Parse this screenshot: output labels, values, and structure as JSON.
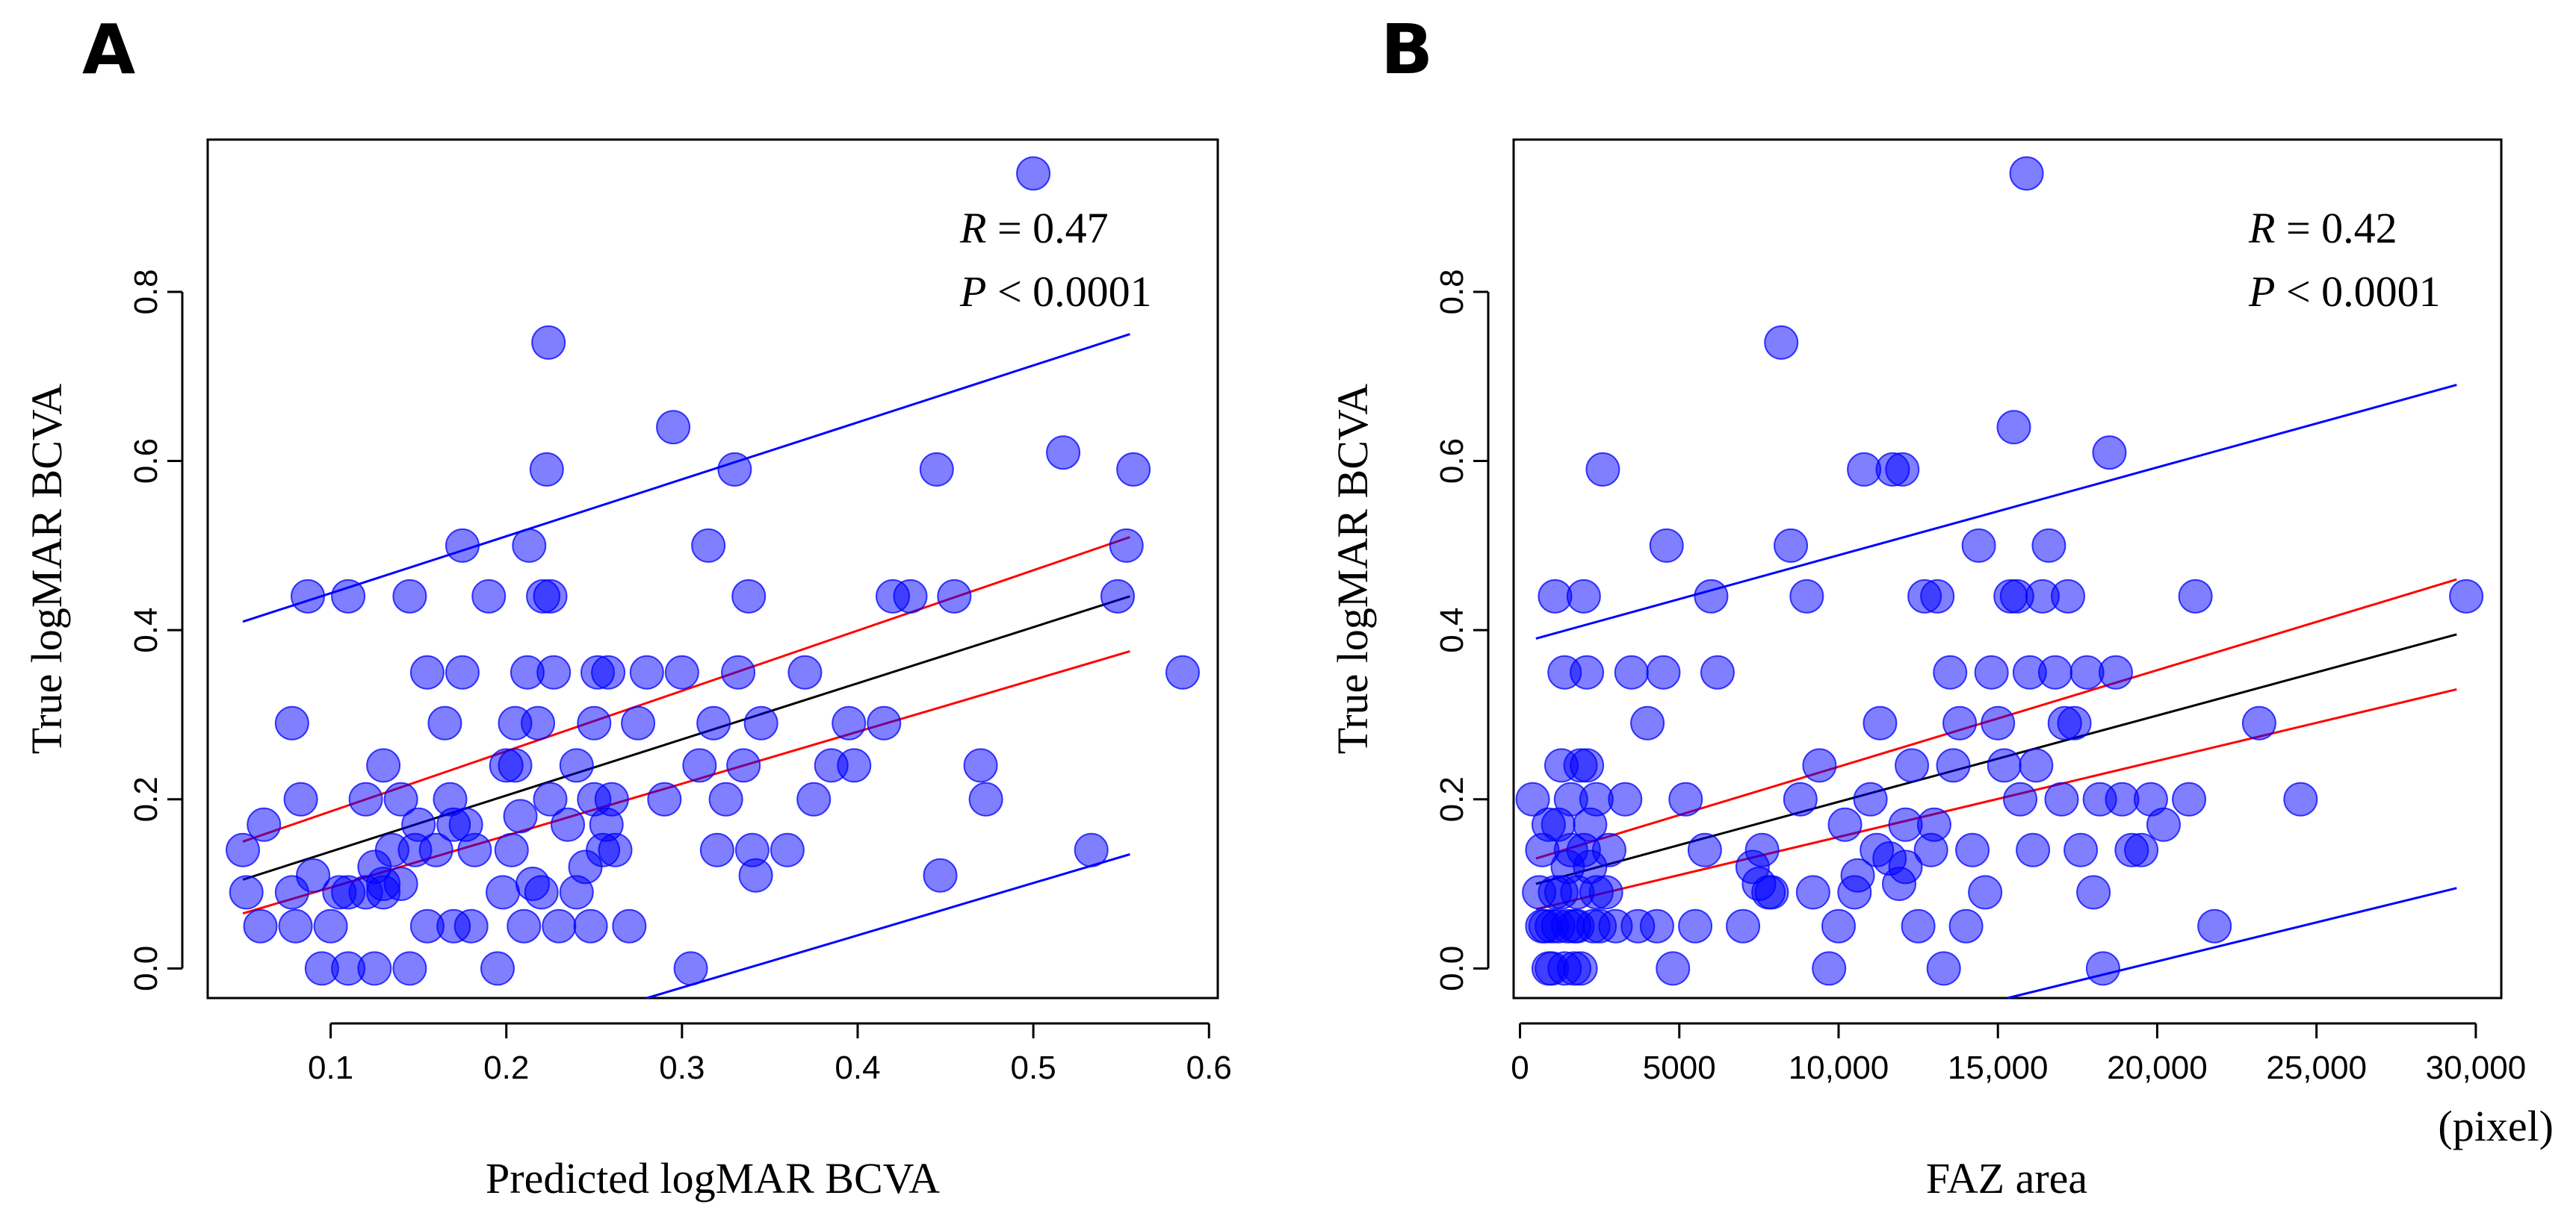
{
  "figure": {
    "panels": [
      "A",
      "B"
    ]
  },
  "chart_data": [
    {
      "type": "scatter",
      "panel_label": "A",
      "xlabel": "Predicted logMAR BCVA",
      "ylabel": "True logMAR BCVA",
      "xlim": [
        0.03,
        0.605
      ],
      "ylim": [
        -0.035,
        0.98
      ],
      "xticks": [
        0.1,
        0.2,
        0.3,
        0.4,
        0.5,
        0.6
      ],
      "xtick_labels": [
        "0.1",
        "0.2",
        "0.3",
        "0.4",
        "0.5",
        "0.6"
      ],
      "yticks": [
        0.0,
        0.2,
        0.4,
        0.6,
        0.8
      ],
      "ytick_labels": [
        "0.0",
        "0.2",
        "0.4",
        "0.6",
        "0.8"
      ],
      "stats": {
        "r_label": "R",
        "r_eq": " = 0.47",
        "p_label": "P",
        "p_eq": " < 0.0001"
      },
      "lines": {
        "fit": {
          "color": "#000000",
          "x": [
            0.05,
            0.555
          ],
          "y": [
            0.105,
            0.44
          ]
        },
        "ci_upper": {
          "color": "#ff0000",
          "x": [
            0.05,
            0.555
          ],
          "y": [
            0.15,
            0.51
          ]
        },
        "ci_lower": {
          "color": "#ff0000",
          "x": [
            0.05,
            0.555
          ],
          "y": [
            0.065,
            0.375
          ]
        },
        "pi_upper": {
          "color": "#0000ff",
          "x": [
            0.05,
            0.555
          ],
          "y": [
            0.41,
            0.75
          ]
        },
        "pi_lower": {
          "color": "#0000ff",
          "x": [
            0.28,
            0.555
          ],
          "y": [
            -0.035,
            0.135
          ]
        }
      },
      "points": [
        [
          0.05,
          0.14
        ],
        [
          0.052,
          0.09
        ],
        [
          0.06,
          0.05
        ],
        [
          0.062,
          0.17
        ],
        [
          0.078,
          0.29
        ],
        [
          0.078,
          0.09
        ],
        [
          0.08,
          0.05
        ],
        [
          0.083,
          0.2
        ],
        [
          0.087,
          0.44
        ],
        [
          0.09,
          0.11
        ],
        [
          0.095,
          0.0
        ],
        [
          0.1,
          0.05
        ],
        [
          0.105,
          0.09
        ],
        [
          0.11,
          0.44
        ],
        [
          0.11,
          0.0
        ],
        [
          0.12,
          0.2
        ],
        [
          0.12,
          0.09
        ],
        [
          0.125,
          0.0
        ],
        [
          0.125,
          0.12
        ],
        [
          0.13,
          0.24
        ],
        [
          0.13,
          0.09
        ],
        [
          0.135,
          0.14
        ],
        [
          0.14,
          0.2
        ],
        [
          0.14,
          0.1
        ],
        [
          0.145,
          0.44
        ],
        [
          0.145,
          0.0
        ],
        [
          0.148,
          0.14
        ],
        [
          0.15,
          0.17
        ],
        [
          0.155,
          0.35
        ],
        [
          0.155,
          0.05
        ],
        [
          0.16,
          0.14
        ],
        [
          0.165,
          0.29
        ],
        [
          0.168,
          0.2
        ],
        [
          0.17,
          0.17
        ],
        [
          0.175,
          0.5
        ],
        [
          0.175,
          0.35
        ],
        [
          0.177,
          0.17
        ],
        [
          0.18,
          0.05
        ],
        [
          0.182,
          0.14
        ],
        [
          0.19,
          0.44
        ],
        [
          0.195,
          0.0
        ],
        [
          0.198,
          0.09
        ],
        [
          0.2,
          0.24
        ],
        [
          0.203,
          0.14
        ],
        [
          0.205,
          0.29
        ],
        [
          0.208,
          0.18
        ],
        [
          0.21,
          0.05
        ],
        [
          0.212,
          0.35
        ],
        [
          0.213,
          0.5
        ],
        [
          0.215,
          0.1
        ],
        [
          0.218,
          0.29
        ],
        [
          0.22,
          0.09
        ],
        [
          0.221,
          0.44
        ],
        [
          0.223,
          0.59
        ],
        [
          0.224,
          0.74
        ],
        [
          0.225,
          0.2
        ],
        [
          0.227,
          0.35
        ],
        [
          0.23,
          0.05
        ],
        [
          0.235,
          0.17
        ],
        [
          0.24,
          0.09
        ],
        [
          0.24,
          0.24
        ],
        [
          0.245,
          0.12
        ],
        [
          0.248,
          0.05
        ],
        [
          0.25,
          0.29
        ],
        [
          0.25,
          0.2
        ],
        [
          0.252,
          0.35
        ],
        [
          0.255,
          0.14
        ],
        [
          0.257,
          0.17
        ],
        [
          0.26,
          0.2
        ],
        [
          0.262,
          0.14
        ],
        [
          0.27,
          0.05
        ],
        [
          0.275,
          0.29
        ],
        [
          0.28,
          0.35
        ],
        [
          0.29,
          0.2
        ],
        [
          0.295,
          0.64
        ],
        [
          0.3,
          0.35
        ],
        [
          0.305,
          0.0
        ],
        [
          0.31,
          0.24
        ],
        [
          0.315,
          0.5
        ],
        [
          0.318,
          0.29
        ],
        [
          0.32,
          0.14
        ],
        [
          0.325,
          0.2
        ],
        [
          0.33,
          0.59
        ],
        [
          0.332,
          0.35
        ],
        [
          0.335,
          0.24
        ],
        [
          0.338,
          0.44
        ],
        [
          0.34,
          0.14
        ],
        [
          0.342,
          0.11
        ],
        [
          0.345,
          0.29
        ],
        [
          0.36,
          0.14
        ],
        [
          0.37,
          0.35
        ],
        [
          0.375,
          0.2
        ],
        [
          0.385,
          0.24
        ],
        [
          0.395,
          0.29
        ],
        [
          0.398,
          0.24
        ],
        [
          0.415,
          0.29
        ],
        [
          0.42,
          0.44
        ],
        [
          0.43,
          0.44
        ],
        [
          0.445,
          0.59
        ],
        [
          0.447,
          0.11
        ],
        [
          0.455,
          0.44
        ],
        [
          0.47,
          0.24
        ],
        [
          0.473,
          0.2
        ],
        [
          0.5,
          0.94
        ],
        [
          0.517,
          0.61
        ],
        [
          0.533,
          0.14
        ],
        [
          0.548,
          0.44
        ],
        [
          0.553,
          0.5
        ],
        [
          0.557,
          0.59
        ],
        [
          0.585,
          0.35
        ],
        [
          0.17,
          0.05
        ],
        [
          0.13,
          0.1
        ],
        [
          0.11,
          0.09
        ],
        [
          0.205,
          0.24
        ],
        [
          0.225,
          0.44
        ],
        [
          0.258,
          0.35
        ]
      ]
    },
    {
      "type": "scatter",
      "panel_label": "B",
      "xlabel": "FAZ area",
      "x_unit_label": "(pixel)",
      "ylabel": "True logMAR BCVA",
      "xlim": [
        -200,
        30800
      ],
      "ylim": [
        -0.035,
        0.98
      ],
      "xticks": [
        0,
        5000,
        10000,
        15000,
        20000,
        25000,
        30000
      ],
      "xtick_labels": [
        "0",
        "5000",
        "10,000",
        "15,000",
        "20,000",
        "25,000",
        "30,000"
      ],
      "yticks": [
        0.0,
        0.2,
        0.4,
        0.6,
        0.8
      ],
      "ytick_labels": [
        "0.0",
        "0.2",
        "0.4",
        "0.6",
        "0.8"
      ],
      "stats": {
        "r_label": "R",
        "r_eq": " = 0.42",
        "p_label": "P",
        "p_eq": " < 0.0001"
      },
      "lines": {
        "fit": {
          "color": "#000000",
          "x": [
            500,
            29400
          ],
          "y": [
            0.1,
            0.395
          ]
        },
        "ci_upper": {
          "color": "#ff0000",
          "x": [
            500,
            29400
          ],
          "y": [
            0.13,
            0.46
          ]
        },
        "ci_lower": {
          "color": "#ff0000",
          "x": [
            500,
            29400
          ],
          "y": [
            0.07,
            0.33
          ]
        },
        "pi_upper": {
          "color": "#0000ff",
          "x": [
            500,
            29400
          ],
          "y": [
            0.39,
            0.69
          ]
        },
        "pi_lower": {
          "color": "#0000ff",
          "x": [
            15300,
            29400
          ],
          "y": [
            -0.035,
            0.095
          ]
        }
      },
      "points": [
        [
          400,
          0.2
        ],
        [
          600,
          0.09
        ],
        [
          700,
          0.14
        ],
        [
          800,
          0.05
        ],
        [
          900,
          0.17
        ],
        [
          1000,
          0.0
        ],
        [
          1100,
          0.44
        ],
        [
          1200,
          0.05
        ],
        [
          1300,
          0.09
        ],
        [
          1400,
          0.35
        ],
        [
          1500,
          0.12
        ],
        [
          1600,
          0.2
        ],
        [
          1700,
          0.0
        ],
        [
          1800,
          0.05
        ],
        [
          1900,
          0.24
        ],
        [
          2000,
          0.44
        ],
        [
          2100,
          0.35
        ],
        [
          2200,
          0.17
        ],
        [
          2300,
          0.05
        ],
        [
          2400,
          0.2
        ],
        [
          2600,
          0.59
        ],
        [
          2800,
          0.14
        ],
        [
          3000,
          0.05
        ],
        [
          3300,
          0.2
        ],
        [
          3500,
          0.35
        ],
        [
          3700,
          0.05
        ],
        [
          4000,
          0.29
        ],
        [
          4300,
          0.05
        ],
        [
          4500,
          0.35
        ],
        [
          4600,
          0.5
        ],
        [
          4800,
          0.0
        ],
        [
          5200,
          0.2
        ],
        [
          5500,
          0.05
        ],
        [
          5800,
          0.14
        ],
        [
          6000,
          0.44
        ],
        [
          6200,
          0.35
        ],
        [
          7000,
          0.05
        ],
        [
          7300,
          0.12
        ],
        [
          7600,
          0.14
        ],
        [
          7900,
          0.09
        ],
        [
          8200,
          0.74
        ],
        [
          8500,
          0.5
        ],
        [
          8800,
          0.2
        ],
        [
          9000,
          0.44
        ],
        [
          9200,
          0.09
        ],
        [
          9400,
          0.24
        ],
        [
          9700,
          0.0
        ],
        [
          10000,
          0.05
        ],
        [
          10200,
          0.17
        ],
        [
          10500,
          0.09
        ],
        [
          10800,
          0.59
        ],
        [
          11000,
          0.2
        ],
        [
          11200,
          0.14
        ],
        [
          11300,
          0.29
        ],
        [
          11700,
          0.59
        ],
        [
          11900,
          0.1
        ],
        [
          12000,
          0.59
        ],
        [
          12100,
          0.17
        ],
        [
          12300,
          0.24
        ],
        [
          12500,
          0.05
        ],
        [
          12700,
          0.44
        ],
        [
          12900,
          0.14
        ],
        [
          13100,
          0.44
        ],
        [
          13300,
          0.0
        ],
        [
          13500,
          0.35
        ],
        [
          13600,
          0.24
        ],
        [
          13800,
          0.29
        ],
        [
          14000,
          0.05
        ],
        [
          14200,
          0.14
        ],
        [
          14400,
          0.5
        ],
        [
          14600,
          0.09
        ],
        [
          14800,
          0.35
        ],
        [
          15000,
          0.29
        ],
        [
          15200,
          0.24
        ],
        [
          15400,
          0.44
        ],
        [
          15500,
          0.64
        ],
        [
          15700,
          0.2
        ],
        [
          15900,
          0.94
        ],
        [
          16000,
          0.35
        ],
        [
          16100,
          0.14
        ],
        [
          16200,
          0.24
        ],
        [
          16400,
          0.44
        ],
        [
          16600,
          0.5
        ],
        [
          16800,
          0.35
        ],
        [
          17000,
          0.2
        ],
        [
          17200,
          0.44
        ],
        [
          17400,
          0.29
        ],
        [
          17600,
          0.14
        ],
        [
          17800,
          0.35
        ],
        [
          18000,
          0.09
        ],
        [
          18200,
          0.2
        ],
        [
          18300,
          0.0
        ],
        [
          18500,
          0.61
        ],
        [
          18700,
          0.35
        ],
        [
          18900,
          0.2
        ],
        [
          19200,
          0.14
        ],
        [
          19500,
          0.14
        ],
        [
          19800,
          0.2
        ],
        [
          20200,
          0.17
        ],
        [
          21000,
          0.2
        ],
        [
          21200,
          0.44
        ],
        [
          21800,
          0.05
        ],
        [
          23200,
          0.29
        ],
        [
          24500,
          0.2
        ],
        [
          29700,
          0.44
        ],
        [
          1500,
          0.05
        ],
        [
          1700,
          0.05
        ],
        [
          1800,
          0.09
        ],
        [
          1900,
          0.0
        ],
        [
          2200,
          0.12
        ],
        [
          2500,
          0.05
        ],
        [
          1300,
          0.24
        ],
        [
          2100,
          0.24
        ],
        [
          1600,
          0.14
        ],
        [
          1400,
          0.0
        ],
        [
          700,
          0.05
        ],
        [
          900,
          0.0
        ],
        [
          1100,
          0.09
        ],
        [
          2400,
          0.09
        ],
        [
          2700,
          0.09
        ],
        [
          1200,
          0.17
        ],
        [
          2000,
          0.14
        ],
        [
          1000,
          0.05
        ],
        [
          12100,
          0.12
        ],
        [
          13000,
          0.17
        ],
        [
          15600,
          0.44
        ],
        [
          17100,
          0.29
        ],
        [
          10600,
          0.11
        ],
        [
          11600,
          0.13
        ],
        [
          7800,
          0.09
        ],
        [
          7500,
          0.1
        ]
      ]
    }
  ]
}
